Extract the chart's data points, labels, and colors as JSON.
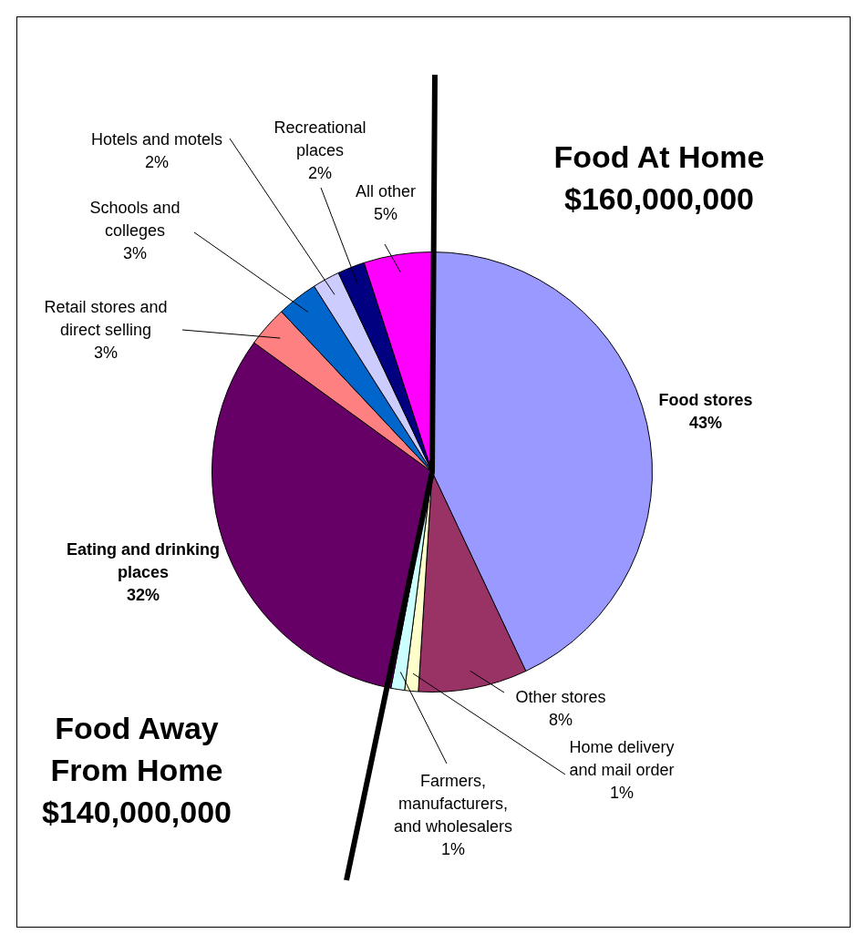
{
  "chart_data": {
    "type": "pie",
    "categories": [
      "Food stores",
      "Other stores",
      "Home delivery and mail order",
      "Farmers, manufacturers, and wholesalers",
      "Eating and drinking places",
      "Retail stores and direct selling",
      "Schools and colleges",
      "Hotels and motels",
      "Recreational places",
      "All other"
    ],
    "values": [
      43,
      8,
      1,
      1,
      32,
      3,
      3,
      2,
      2,
      5
    ],
    "colors": [
      "#9999ff",
      "#993366",
      "#ffffcc",
      "#ccffff",
      "#660066",
      "#ff8080",
      "#0066cc",
      "#ccccff",
      "#000080",
      "#ff00ff"
    ],
    "value_labels": [
      "43%",
      "8%",
      "1%",
      "1%",
      "32%",
      "3%",
      "3%",
      "2%",
      "2%",
      "5%"
    ],
    "annotations": [
      "Food At Home $160,000,000",
      "Food Away From Home $140,000,000"
    ]
  }
}
